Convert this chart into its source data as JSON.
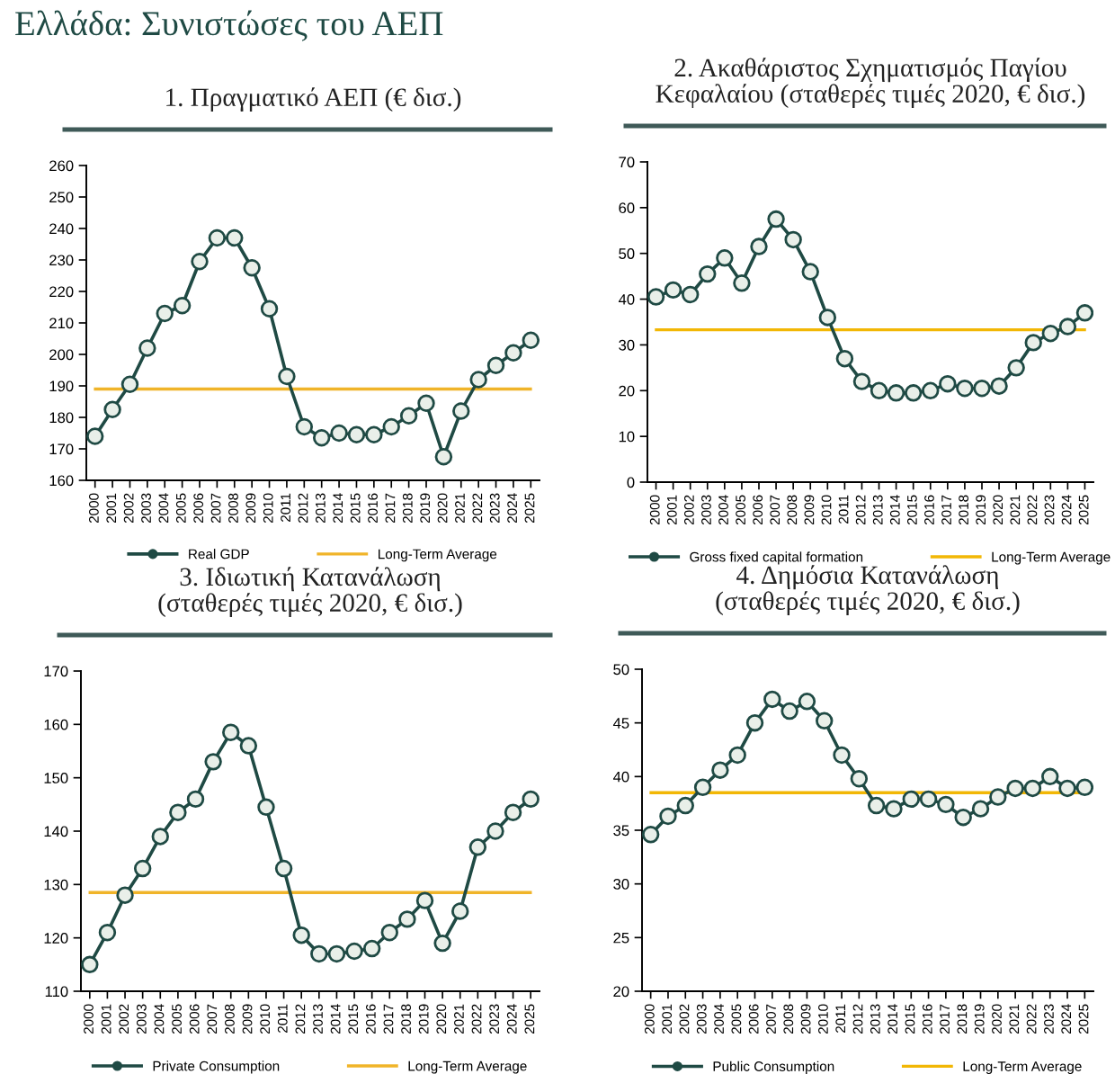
{
  "chart_data": [
    {
      "type": "line",
      "title": "1. Πραγματικό ΑΕΠ (€ δισ.)",
      "annotations": [
        "Ελλάδα: Συνιστώσες του ΑΕΠ"
      ],
      "categories": [
        "2000",
        "2001",
        "2002",
        "2003",
        "2004",
        "2005",
        "2006",
        "2007",
        "2008",
        "2009",
        "2010",
        "2011",
        "2012",
        "2013",
        "2014",
        "2015",
        "2016",
        "2017",
        "2018",
        "2019",
        "2020",
        "2021",
        "2022",
        "2023",
        "2024",
        "2025"
      ],
      "series": [
        {
          "name": "Real GDP",
          "color": "#1f4a44",
          "values": [
            174,
            182.5,
            190.5,
            202,
            213,
            215.5,
            229.5,
            237,
            237,
            227.5,
            214.5,
            193,
            177,
            173.5,
            175,
            174.5,
            174.5,
            177,
            180.5,
            184.5,
            167.5,
            182,
            192,
            196.5,
            200.5,
            204.5
          ]
        }
      ],
      "ref_lines": [
        {
          "axis": "y",
          "value": 189,
          "label": "Long-Term Average",
          "color": "#f0b429"
        }
      ],
      "ylim": [
        160,
        260
      ],
      "yticks": [
        160,
        170,
        180,
        190,
        200,
        210,
        220,
        230,
        240,
        250,
        260
      ],
      "marker": "circle",
      "grid": false,
      "legend": "bottom"
    },
    {
      "type": "line",
      "title": "2. Ακαθάριστος Σχηματισμός Παγίου\nΚεφαλαίου (σταθερές τιμές 2020, € δισ.)",
      "categories": [
        "2000",
        "2001",
        "2002",
        "2003",
        "2004",
        "2005",
        "2006",
        "2007",
        "2008",
        "2009",
        "2010",
        "2011",
        "2012",
        "2013",
        "2014",
        "2015",
        "2016",
        "2017",
        "2018",
        "2019",
        "2020",
        "2021",
        "2022",
        "2023",
        "2024",
        "2025"
      ],
      "series": [
        {
          "name": "Gross fixed capital formation",
          "color": "#1f4a44",
          "values": [
            40.5,
            42,
            41,
            45.5,
            49,
            43.5,
            51.5,
            57.5,
            53,
            46,
            36,
            27,
            22,
            20,
            19.5,
            19.5,
            20,
            21.5,
            20.5,
            20.5,
            21,
            25,
            30.5,
            32.5,
            34,
            37
          ]
        }
      ],
      "ref_lines": [
        {
          "axis": "y",
          "value": 33.3,
          "label": "Long-Term Average",
          "color": "#f2b705"
        }
      ],
      "ylim": [
        0,
        70
      ],
      "yticks": [
        0,
        10,
        20,
        30,
        40,
        50,
        60,
        70
      ],
      "marker": "circle",
      "grid": false,
      "legend": "bottom"
    },
    {
      "type": "line",
      "title": "3. Ιδιωτική Κατανάλωση\n(σταθερές τιμές 2020, € δισ.)",
      "categories": [
        "2000",
        "2001",
        "2002",
        "2003",
        "2004",
        "2005",
        "2006",
        "2007",
        "2008",
        "2009",
        "2010",
        "2011",
        "2012",
        "2013",
        "2014",
        "2015",
        "2016",
        "2017",
        "2018",
        "2019",
        "2020",
        "2021",
        "2022",
        "2023",
        "2024",
        "2025"
      ],
      "series": [
        {
          "name": "Private Consumption",
          "color": "#1f4a44",
          "values": [
            115,
            121,
            128,
            133,
            139,
            143.5,
            146,
            153,
            158.5,
            156,
            144.5,
            133,
            120.5,
            117,
            117,
            117.5,
            118,
            121,
            123.5,
            127,
            119,
            125,
            137,
            140,
            143.5,
            146
          ]
        }
      ],
      "ref_lines": [
        {
          "axis": "y",
          "value": 128.5,
          "label": "Long-Term Average",
          "color": "#f0b429"
        }
      ],
      "ylim": [
        110,
        170
      ],
      "yticks": [
        110,
        120,
        130,
        140,
        150,
        160,
        170
      ],
      "marker": "circle",
      "grid": false,
      "legend": "bottom"
    },
    {
      "type": "line",
      "title": "4. Δημόσια Κατανάλωση\n(σταθερές τιμές 2020, € δισ.)",
      "categories": [
        "2000",
        "2001",
        "2002",
        "2003",
        "2004",
        "2005",
        "2006",
        "2007",
        "2008",
        "2009",
        "2010",
        "2011",
        "2012",
        "2013",
        "2014",
        "2015",
        "2016",
        "2017",
        "2018",
        "2019",
        "2020",
        "2021",
        "2022",
        "2023",
        "2024",
        "2025"
      ],
      "series": [
        {
          "name": "Public Consumption",
          "color": "#1f4a44",
          "values": [
            34.6,
            36.3,
            37.3,
            39,
            40.6,
            42,
            45,
            47.2,
            46.1,
            47,
            45.2,
            42,
            39.8,
            37.3,
            37,
            37.9,
            37.9,
            37.4,
            36.2,
            37,
            38.1,
            38.9,
            38.9,
            40,
            38.9,
            39
          ]
        }
      ],
      "ref_lines": [
        {
          "axis": "y",
          "value": 38.5,
          "label": "Long-Term Average",
          "color": "#f2b705"
        }
      ],
      "ylim": [
        20,
        50
      ],
      "yticks": [
        20,
        25,
        30,
        35,
        40,
        45,
        50
      ],
      "marker": "circle",
      "grid": false,
      "legend": "bottom"
    }
  ]
}
